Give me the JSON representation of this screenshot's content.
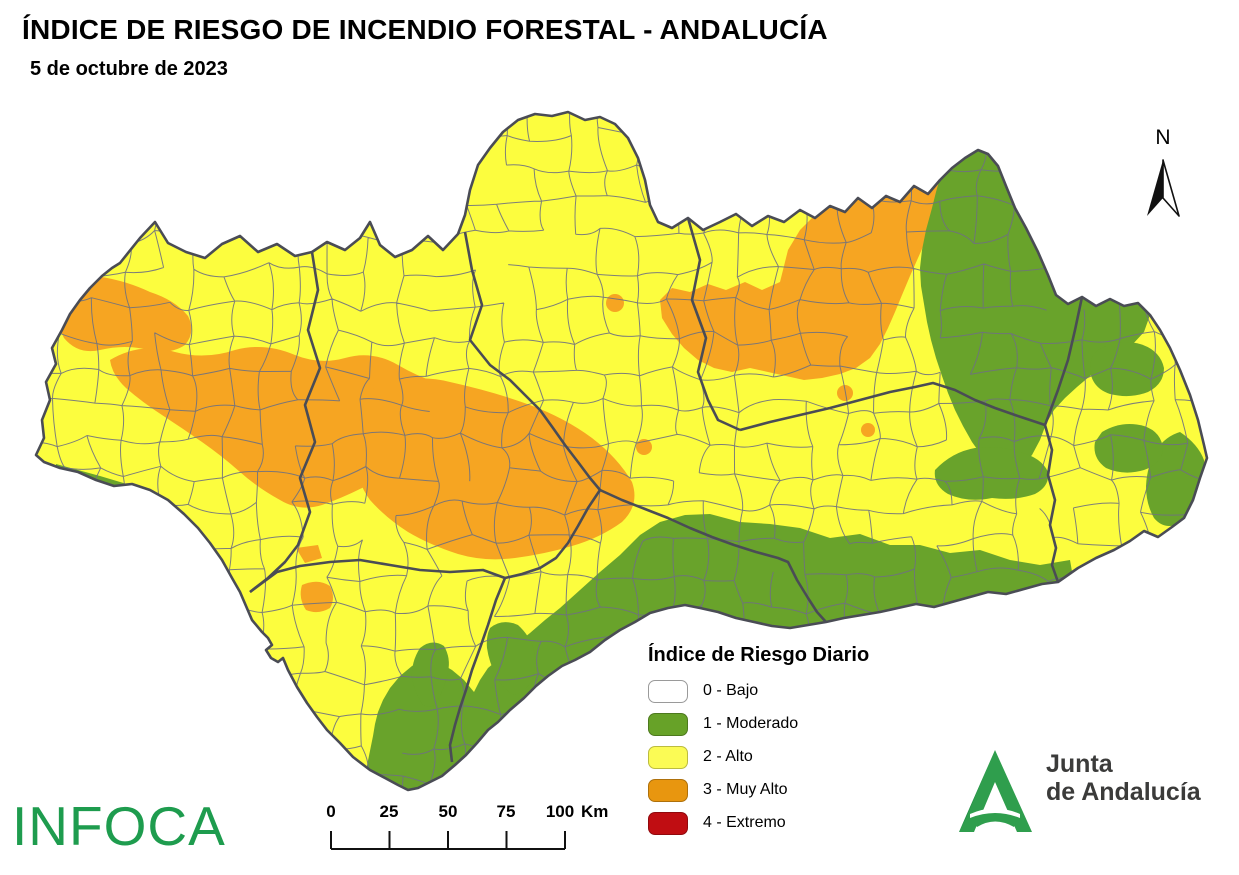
{
  "title": "ÍNDICE DE RIESGO DE INCENDIO FORESTAL - ANDALUCÍA",
  "date": "5 de octubre de 2023",
  "legend": {
    "title": "Índice de Riesgo Diario",
    "items": [
      {
        "label": "0 - Bajo",
        "color": "#FFFFFF"
      },
      {
        "label": "1 - Moderado",
        "color": "#67A228"
      },
      {
        "label": "2 - Alto",
        "color": "#FBFB55"
      },
      {
        "label": "3 - Muy Alto",
        "color": "#E8960F"
      },
      {
        "label": "4 - Extremo",
        "color": "#C00D12"
      }
    ]
  },
  "scale_bar": {
    "ticks": [
      "0",
      "25",
      "50",
      "75",
      "100"
    ],
    "unit": "Km"
  },
  "compass": {
    "label": "N"
  },
  "branding": {
    "infoca": "INFOCA",
    "infoca_color": "#1E9C4E",
    "junta_line1": "Junta",
    "junta_line2": "de Andalucía",
    "junta_green": "#2F9E4D",
    "junta_green_dark": "#18803F",
    "junta_text_color": "#3B3B3A"
  },
  "map": {
    "region": "Andalucía",
    "fill_colors": {
      "alto": "#FCFD3E",
      "moderado": "#69A32B",
      "muyalto": "#F6A522"
    },
    "boundary_colors": {
      "muni": "#6F7180",
      "prov": "#4A4C55"
    }
  }
}
